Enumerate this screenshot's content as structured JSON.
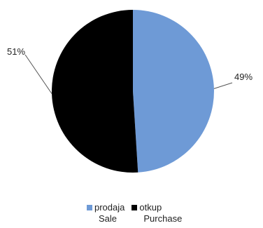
{
  "chart_data": {
    "type": "pie",
    "title": "",
    "slices": [
      {
        "label": "prodaja",
        "label_en": "Sale",
        "value": 49,
        "value_label": "49%",
        "color": "#6e9ad6"
      },
      {
        "label": "otkup",
        "label_en": "Purchase",
        "value": 51,
        "value_label": "51%",
        "color": "#000000"
      }
    ],
    "legend_position": "bottom"
  }
}
